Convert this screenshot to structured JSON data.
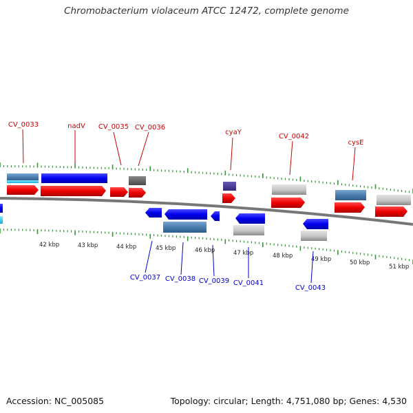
{
  "title": "Chromobacterium violaceum ATCC 12472, complete genome",
  "footer": {
    "accession": "Accession: NC_005085",
    "topology": "Topology: circular; Length: 4,751,080 bp; Genes: 4,530"
  },
  "colors": {
    "backbone": "#777777",
    "ticks": "#339933",
    "forward_label": "#cc0000",
    "reverse_label": "#0000cc",
    "kbp_label": "#222222"
  },
  "kbp_labels": [
    "42 kbp",
    "43 kbp",
    "44 kbp",
    "45 kbp",
    "46 kbp",
    "47 kbp",
    "48 kbp",
    "49 kbp",
    "50 kbp",
    "51 kbp"
  ],
  "forward_genes": [
    "CV_0033",
    "nadV",
    "CV_0035",
    "CV_0036",
    "cyaY",
    "CV_0042",
    "cysE"
  ],
  "reverse_genes": [
    "CV_0037",
    "CV_0038",
    "CV_0039",
    "CV_0041",
    "CV_0043"
  ]
}
